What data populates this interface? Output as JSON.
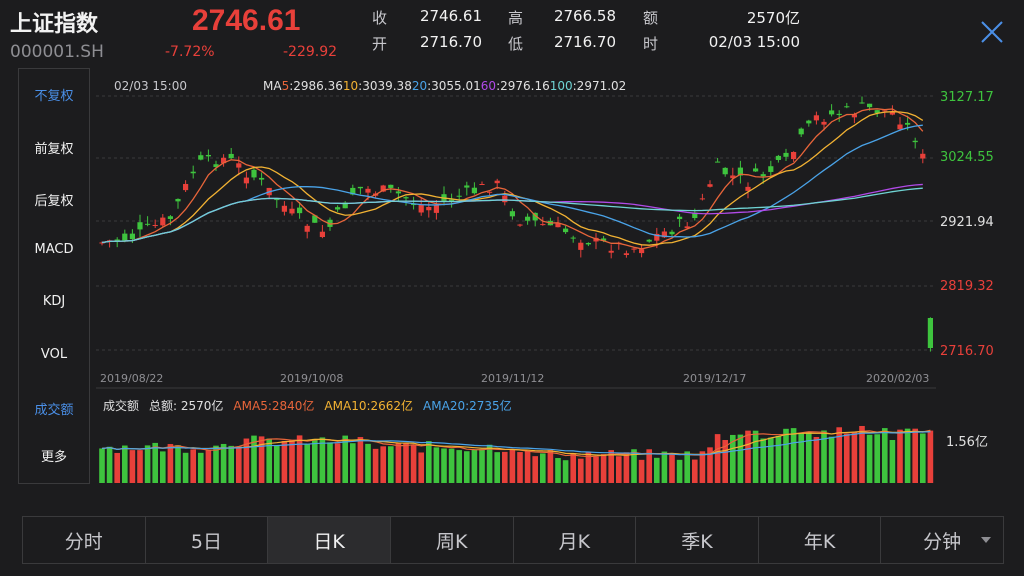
{
  "header": {
    "name": "上证指数",
    "code": "000001.SH",
    "price": "2746.61",
    "change_pct": "-7.72%",
    "change": "-229.92",
    "quote": {
      "close_label": "收",
      "close": "2746.61",
      "open_label": "开",
      "open": "2716.70",
      "high_label": "高",
      "high": "2766.58",
      "low_label": "低",
      "low": "2716.70",
      "amount_label": "额",
      "amount": "2570亿",
      "time_label": "时",
      "time": "02/03 15:00"
    }
  },
  "sidebar": {
    "items": [
      "不复权",
      "前复权",
      "后复权",
      "MACD",
      "KDJ",
      "VOL",
      "成交额",
      "更多"
    ],
    "active": [
      0,
      6
    ]
  },
  "chart_data": {
    "type": "candlestick",
    "timestamp": "02/03 15:00",
    "ma_legend": [
      {
        "label": "MA",
        "num": "5",
        "value": ":2986.36",
        "color": "#e8653a"
      },
      {
        "label": "",
        "num": "10",
        "value": ":3039.38",
        "color": "#f2b233"
      },
      {
        "label": "",
        "num": "20",
        "value": ":3055.01",
        "color": "#4aa3e8"
      },
      {
        "label": "",
        "num": "60",
        "value": ":2976.16",
        "color": "#b14ae8"
      },
      {
        "label": "",
        "num": "100",
        "value": ":2971.02",
        "color": "#6fd3d3"
      }
    ],
    "y_ticks": [
      {
        "label": "3127.17",
        "color": "#3ec43e"
      },
      {
        "label": "3024.55",
        "color": "#3ec43e"
      },
      {
        "label": "2921.94",
        "color": "#e0e0e0"
      },
      {
        "label": "2819.32",
        "color": "#e8403a"
      },
      {
        "label": "2716.70",
        "color": "#e8403a"
      }
    ],
    "ylim": [
      2716.7,
      3127.17
    ],
    "x_ticks": [
      "2019/08/22",
      "2019/10/08",
      "2019/11/12",
      "2019/12/17",
      "2020/02/03"
    ],
    "volume_legend": {
      "title": "成交额",
      "total": "总额: 2570亿",
      "ama5": "AMA5:2840亿",
      "ama10": "AMA10:2662亿",
      "ama20": "AMA20:2735亿"
    },
    "volume_axis_label": "1.56亿",
    "candles": [],
    "colors": {
      "up": "#e8403a",
      "down": "#3ec43e"
    }
  },
  "tabs": {
    "items": [
      "分时",
      "5日",
      "日K",
      "周K",
      "月K",
      "季K",
      "年K",
      "分钟"
    ],
    "active": 2
  }
}
